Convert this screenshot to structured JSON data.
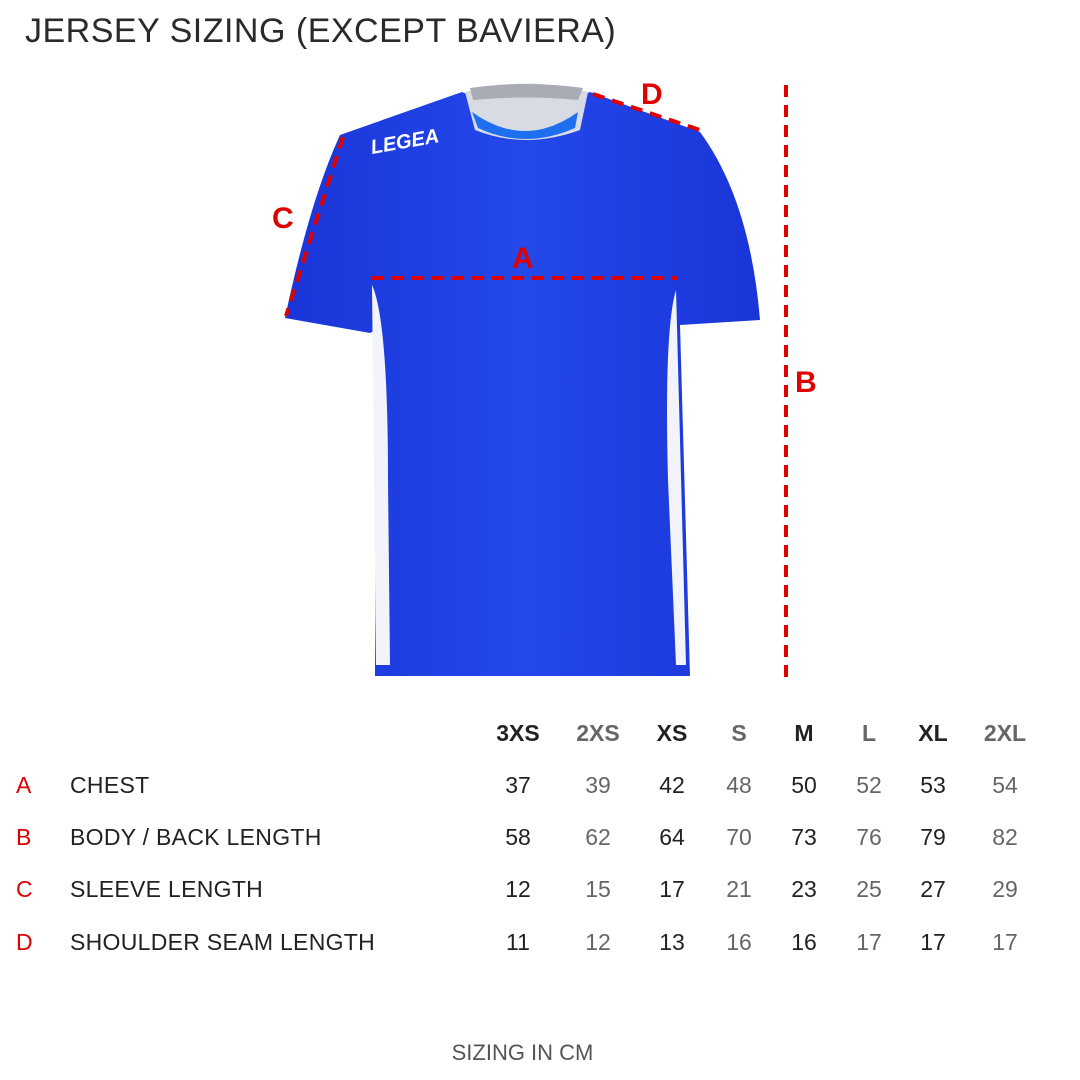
{
  "title": "JERSEY SIZING (EXCEPT BAVIERA)",
  "brand_logo": "LEGEA",
  "colors": {
    "jersey": "#1f3fe0",
    "measure_lines": "#e00000"
  },
  "measure_labels": {
    "A": "A",
    "B": "B",
    "C": "C",
    "D": "D"
  },
  "table": {
    "sizes": [
      "3XS",
      "2XS",
      "XS",
      "S",
      "M",
      "L",
      "XL",
      "2XL"
    ],
    "rows": [
      {
        "letter": "A",
        "name": "CHEST",
        "values": [
          "37",
          "39",
          "42",
          "48",
          "50",
          "52",
          "53",
          "54"
        ]
      },
      {
        "letter": "B",
        "name": "BODY / BACK LENGTH",
        "values": [
          "58",
          "62",
          "64",
          "70",
          "73",
          "76",
          "79",
          "82"
        ]
      },
      {
        "letter": "C",
        "name": "SLEEVE LENGTH",
        "values": [
          "12",
          "15",
          "17",
          "21",
          "23",
          "25",
          "27",
          "29"
        ]
      },
      {
        "letter": "D",
        "name": "SHOULDER SEAM LENGTH",
        "values": [
          "11",
          "12",
          "13",
          "16",
          "16",
          "17",
          "17",
          "17"
        ]
      }
    ]
  },
  "footer": "SIZING IN CM"
}
